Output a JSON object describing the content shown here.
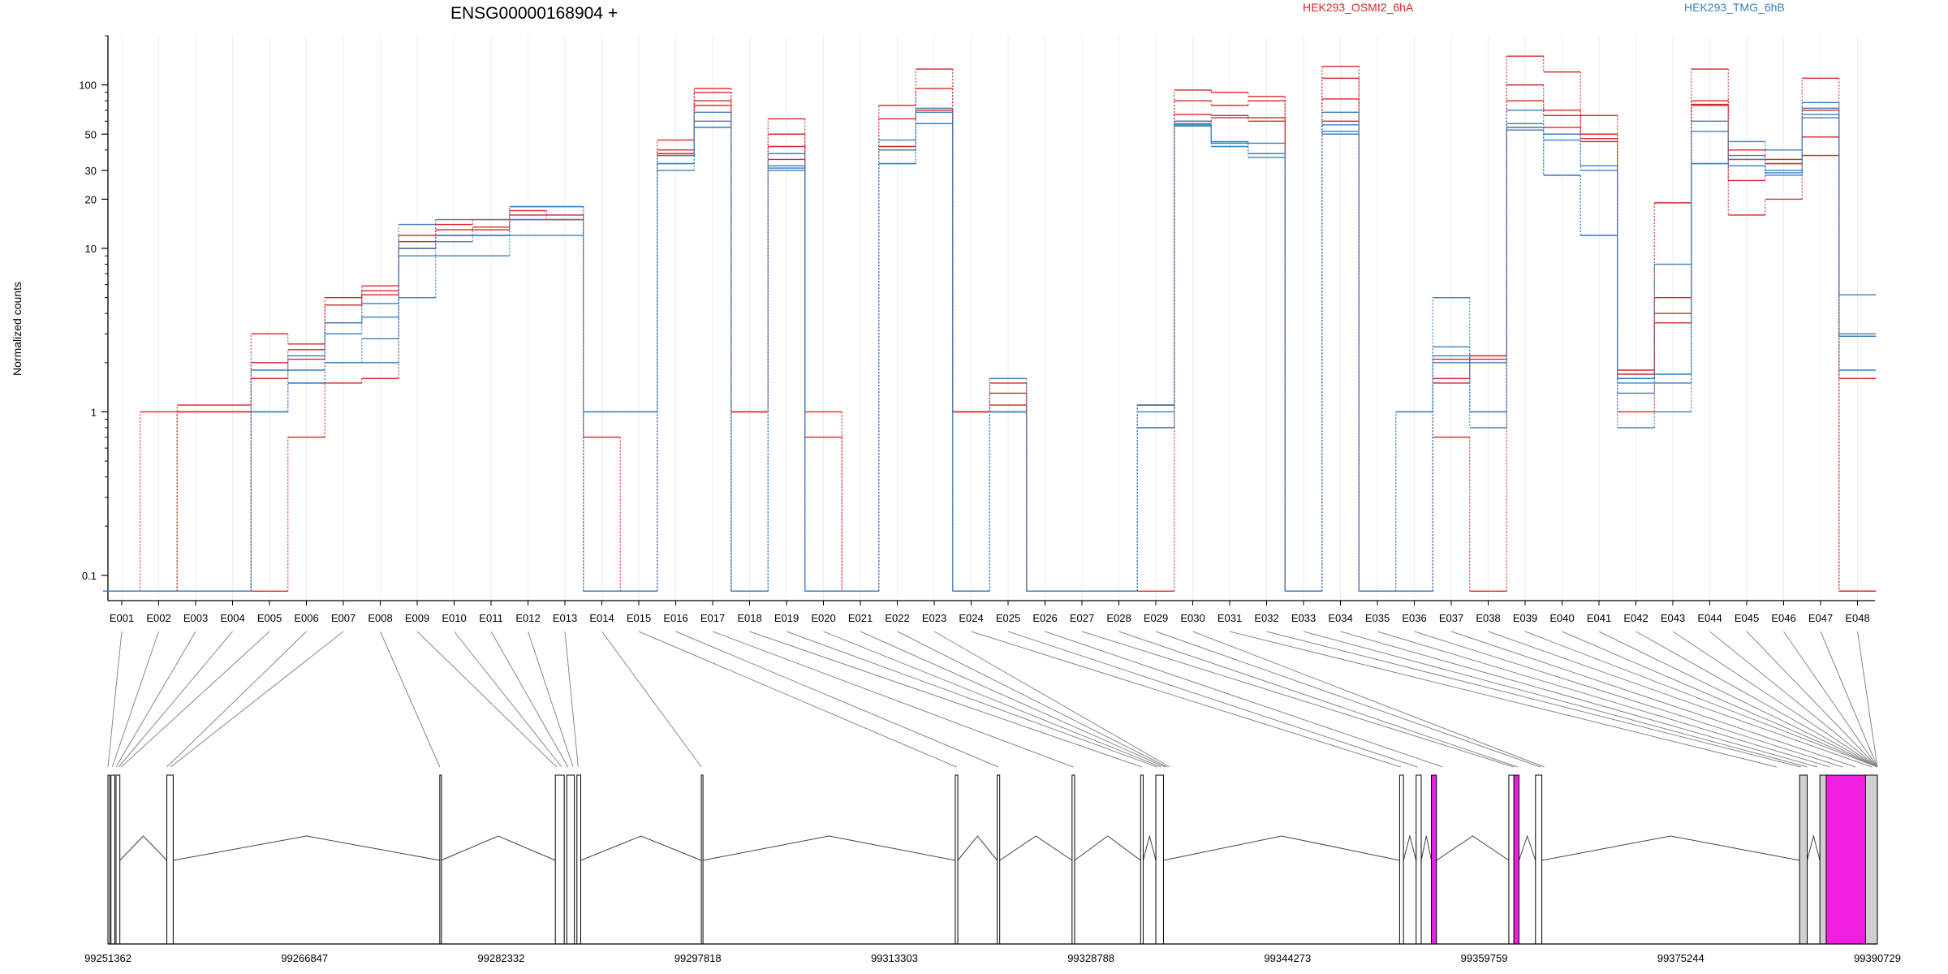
{
  "chart_data": {
    "type": "line",
    "title": "ENSG00000168904 +",
    "ylabel": "Normalized counts",
    "y_scale": "log",
    "ylim": [
      0.07,
      200
    ],
    "y_ticks": [
      {
        "value": 0.1,
        "label": "0.1"
      },
      {
        "value": 1,
        "label": "1"
      },
      {
        "value": 10,
        "label": "10"
      },
      {
        "value": 20,
        "label": "20"
      },
      {
        "value": 30,
        "label": "30"
      },
      {
        "value": 50,
        "label": "50"
      },
      {
        "value": 100,
        "label": "100"
      }
    ],
    "categories": [
      "E001",
      "E002",
      "E003",
      "E004",
      "E005",
      "E006",
      "E007",
      "E008",
      "E009",
      "E010",
      "E011",
      "E012",
      "E013",
      "E014",
      "E015",
      "E016",
      "E017",
      "E018",
      "E019",
      "E020",
      "E021",
      "E022",
      "E023",
      "E024",
      "E025",
      "E026",
      "E027",
      "E028",
      "E029",
      "E030",
      "E031",
      "E032",
      "E033",
      "E034",
      "E035",
      "E036",
      "E037",
      "E038",
      "E039",
      "E040",
      "E041",
      "E042",
      "E043",
      "E044",
      "E045",
      "E046",
      "E047",
      "E048"
    ],
    "legend": [
      {
        "name": "HEK293_OSMI2_6hA",
        "color": "#d62728"
      },
      {
        "name": "HEK293_TMG_6hB",
        "color": "#3a7fc0"
      }
    ],
    "series": [
      {
        "group": "HEK293_OSMI2_6hA",
        "color": "#d62728",
        "values": [
          0.08,
          1,
          1.1,
          1.1,
          3,
          2.6,
          5,
          5.9,
          12,
          14,
          15,
          18,
          18,
          0.08,
          0.08,
          46,
          95,
          1,
          62,
          1,
          0.08,
          75,
          125,
          1,
          1.5,
          0.08,
          0.08,
          0.08,
          1.1,
          93,
          90,
          85,
          0.08,
          130,
          0.08,
          0.08,
          2.1,
          2.2,
          150,
          120,
          65,
          1.8,
          19,
          125,
          40,
          35,
          110,
          0.08
        ]
      },
      {
        "group": "HEK293_OSMI2_6hA",
        "color": "#d62728",
        "values": [
          0.08,
          0.08,
          1,
          1,
          2,
          2.4,
          4.5,
          5.5,
          11,
          13,
          13.5,
          17,
          16,
          0.7,
          0.08,
          40,
          90,
          1,
          50,
          0.7,
          0.08,
          62,
          95,
          1,
          1.3,
          0.08,
          0.08,
          0.08,
          1.1,
          80,
          75,
          80,
          0.08,
          110,
          0.08,
          0.08,
          1.6,
          2.2,
          100,
          70,
          50,
          1.7,
          5,
          80,
          35,
          33,
          70,
          2.9
        ]
      },
      {
        "group": "HEK293_OSMI2_6hA",
        "color": "#d62728",
        "values": [
          0.08,
          0.08,
          1,
          1,
          1.6,
          2.1,
          3.5,
          5.2,
          10,
          12,
          13,
          16,
          15,
          0.08,
          0.08,
          38,
          80,
          1,
          42,
          0.08,
          0.08,
          42,
          70,
          1,
          1.1,
          0.08,
          0.08,
          0.08,
          1.1,
          66,
          65,
          63,
          0.08,
          82,
          0.08,
          0.08,
          1.5,
          2.1,
          80,
          65,
          47,
          1.6,
          3.5,
          76,
          26,
          33,
          48,
          1.6
        ]
      },
      {
        "group": "HEK293_OSMI2_6hA",
        "color": "#d62728",
        "values": [
          0.08,
          0.08,
          1,
          1,
          0.08,
          0.7,
          1.5,
          1.6,
          10,
          12,
          12,
          15,
          15,
          0.08,
          0.08,
          37,
          75,
          0.08,
          35,
          0.08,
          0.08,
          40,
          70,
          1,
          1.0,
          0.08,
          0.08,
          0.08,
          0.08,
          60,
          63,
          60,
          0.08,
          60,
          0.08,
          0.08,
          0.7,
          0.08,
          55,
          55,
          45,
          1,
          4,
          75,
          16,
          20,
          37,
          0.08
        ]
      },
      {
        "group": "HEK293_TMG_6hB",
        "color": "#3a7fc0",
        "values": [
          0.08,
          0.08,
          0.08,
          0.08,
          1.8,
          2.2,
          3.5,
          4.6,
          14,
          15,
          15,
          18,
          18,
          1,
          1,
          37,
          68,
          0.08,
          38,
          0.08,
          0.08,
          46,
          72,
          0.08,
          1.6,
          0.08,
          0.08,
          0.08,
          1.1,
          60,
          45,
          44,
          0.08,
          68,
          0.08,
          1,
          5,
          2,
          70,
          50,
          32,
          1.6,
          8,
          60,
          45,
          40,
          78,
          5.2
        ]
      },
      {
        "group": "HEK293_TMG_6hB",
        "color": "#3a7fc0",
        "values": [
          0.08,
          0.08,
          0.08,
          0.08,
          1,
          1.8,
          3,
          3.8,
          10,
          12,
          12,
          15,
          15,
          1,
          1,
          33,
          60,
          0.08,
          32,
          0.08,
          0.08,
          40,
          68,
          0.08,
          1,
          0.08,
          0.08,
          0.08,
          1,
          58,
          44,
          38,
          0.08,
          57,
          0.08,
          1,
          2.5,
          1,
          58,
          46,
          30,
          1.5,
          1.7,
          52,
          35,
          30,
          72,
          3
        ]
      },
      {
        "group": "HEK293_TMG_6hB",
        "color": "#3a7fc0",
        "values": [
          0.08,
          0.08,
          0.08,
          0.08,
          1,
          1.5,
          2,
          2.8,
          9,
          11,
          12,
          15,
          15,
          0.08,
          0.08,
          33,
          55,
          0.08,
          31,
          0.08,
          0.08,
          33,
          58,
          0.08,
          1,
          0.08,
          0.08,
          0.08,
          0.8,
          57,
          44,
          38,
          0.08,
          52,
          0.08,
          0.08,
          2.2,
          1,
          55,
          28,
          12,
          1.3,
          1.5,
          33,
          37,
          29,
          66,
          1.8
        ]
      },
      {
        "group": "HEK293_TMG_6hB",
        "color": "#3a7fc0",
        "values": [
          0.08,
          0.08,
          0.08,
          0.08,
          1,
          1.5,
          2,
          2,
          5,
          9,
          9,
          12,
          12,
          0.08,
          0.08,
          30,
          55,
          0.08,
          30,
          0.08,
          0.08,
          33,
          58,
          0.08,
          1,
          0.08,
          0.08,
          0.08,
          0.8,
          56,
          42,
          36,
          0.08,
          50,
          0.08,
          0.08,
          2,
          0.8,
          53,
          28,
          12,
          0.8,
          1,
          33,
          32,
          28,
          63,
          2.9
        ]
      }
    ],
    "genomic_axis": {
      "range": [
        99251362,
        99390729
      ],
      "tick_labels": [
        "99251362",
        "99266847",
        "99282332",
        "99297818",
        "99313303",
        "99328788",
        "99344273",
        "99359759",
        "99375244",
        "99390729"
      ]
    },
    "exon_positions": [
      99251362,
      99251700,
      99252000,
      99252200,
      99252400,
      99256000,
      99256300,
      99277500,
      99286700,
      99287100,
      99287600,
      99288000,
      99288400,
      99298100,
      99318200,
      99321500,
      99327400,
      99332800,
      99334000,
      99334300,
      99334600,
      99334800,
      99335000,
      99353200,
      99354500,
      99356500,
      99362100,
      99362400,
      99364200,
      99364500,
      99382800,
      99384700,
      99385200,
      99386000,
      99387000,
      99388000,
      99389000,
      99390300,
      99390729
    ],
    "exon_blocks": [
      {
        "start": 99251362,
        "end": 99251500,
        "kind": "plain"
      },
      {
        "start": 99251600,
        "end": 99251900,
        "kind": "plain"
      },
      {
        "start": 99252000,
        "end": 99252300,
        "kind": "plain"
      },
      {
        "start": 99256000,
        "end": 99256500,
        "kind": "plain"
      },
      {
        "start": 99277500,
        "end": 99277600,
        "kind": "plain"
      },
      {
        "start": 99286600,
        "end": 99287300,
        "kind": "plain"
      },
      {
        "start": 99287500,
        "end": 99288100,
        "kind": "plain"
      },
      {
        "start": 99288300,
        "end": 99288600,
        "kind": "plain"
      },
      {
        "start": 99298100,
        "end": 99298200,
        "kind": "plain"
      },
      {
        "start": 99318100,
        "end": 99318300,
        "kind": "plain"
      },
      {
        "start": 99321400,
        "end": 99321600,
        "kind": "plain"
      },
      {
        "start": 99327300,
        "end": 99327500,
        "kind": "plain"
      },
      {
        "start": 99332700,
        "end": 99332900,
        "kind": "plain"
      },
      {
        "start": 99333900,
        "end": 99334500,
        "kind": "plain"
      },
      {
        "start": 99353100,
        "end": 99353400,
        "kind": "plain"
      },
      {
        "start": 99354400,
        "end": 99354800,
        "kind": "plain"
      },
      {
        "start": 99355600,
        "end": 99356000,
        "kind": "magenta"
      },
      {
        "start": 99361700,
        "end": 99362100,
        "kind": "plain"
      },
      {
        "start": 99362100,
        "end": 99362500,
        "kind": "magenta"
      },
      {
        "start": 99363800,
        "end": 99364300,
        "kind": "plain"
      },
      {
        "start": 99384600,
        "end": 99385200,
        "kind": "grey"
      },
      {
        "start": 99386200,
        "end": 99386700,
        "kind": "grey"
      },
      {
        "start": 99386700,
        "end": 99389800,
        "kind": "magenta"
      },
      {
        "start": 99389800,
        "end": 99390729,
        "kind": "grey"
      }
    ],
    "grid": true,
    "legend_placement": "top"
  }
}
